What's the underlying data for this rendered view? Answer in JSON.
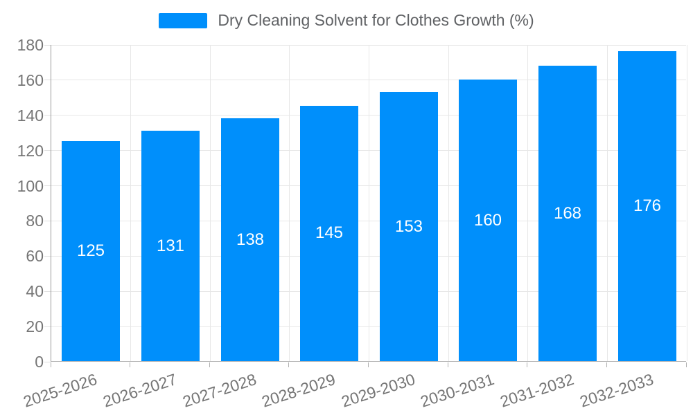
{
  "legend": {
    "label": "Dry Cleaning Solvent for Clothes Growth (%)"
  },
  "colors": {
    "bar": "#008FFB",
    "grid": "#e7e7e7",
    "x_axis": "#b0b0b0",
    "y_axis": "#999999",
    "tick_label": "#757575",
    "legend_text": "#606265",
    "data_label": "#ffffff",
    "background": "#ffffff"
  },
  "chart_data": {
    "type": "bar",
    "title": "Dry Cleaning Solvent for Clothes Growth (%)",
    "categories": [
      "2025-2026",
      "2026-2027",
      "2027-2028",
      "2028-2029",
      "2029-2030",
      "2030-2031",
      "2031-2032",
      "2032-2033"
    ],
    "values": [
      125,
      131,
      138,
      145,
      153,
      160,
      168,
      176
    ],
    "data_labels": [
      "125",
      "131",
      "138",
      "145",
      "153",
      "160",
      "168",
      "176"
    ],
    "xlabel": "",
    "ylabel": "",
    "ylim": [
      0,
      180
    ],
    "ytick_step": 20,
    "yticks": [
      "0",
      "20",
      "40",
      "60",
      "80",
      "100",
      "120",
      "140",
      "160",
      "180"
    ],
    "grid": "horizontal and vertical light gridlines",
    "legend_position": "top"
  }
}
